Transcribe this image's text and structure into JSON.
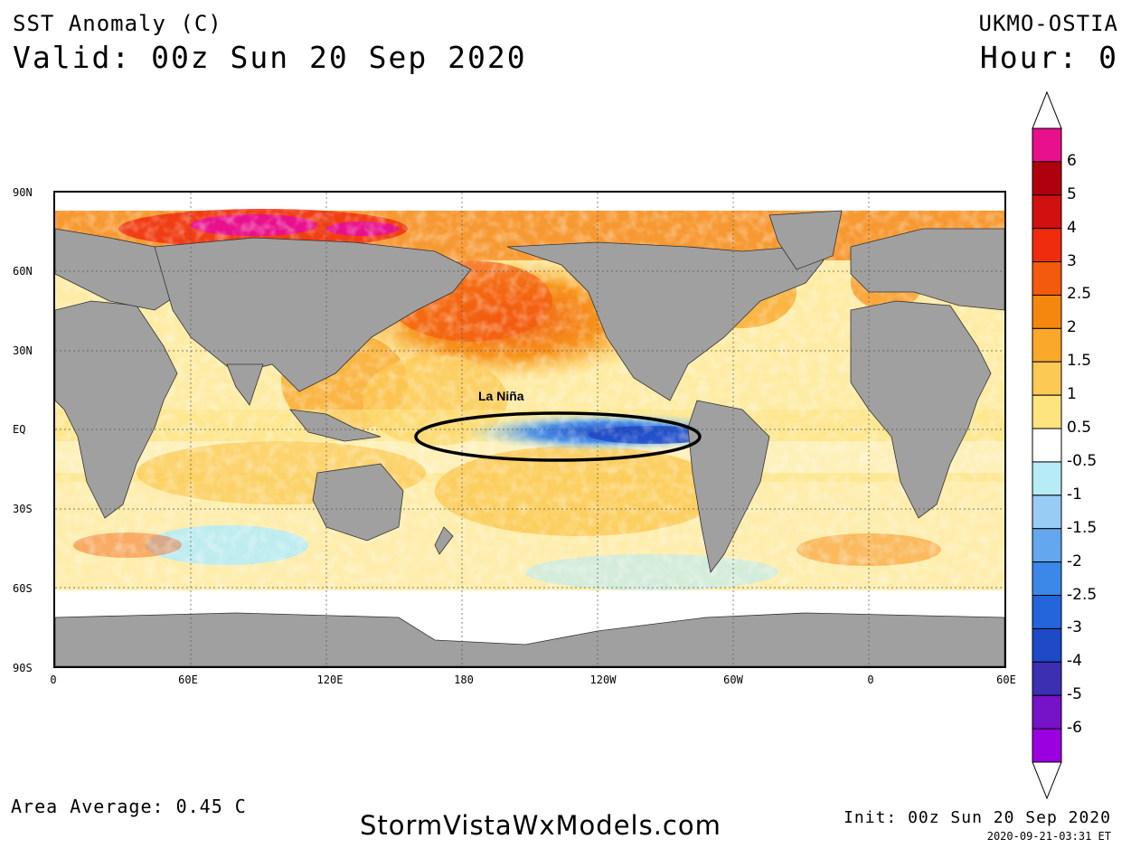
{
  "header": {
    "title": "SST Anomaly (C)",
    "valid": "Valid: 00z Sun 20 Sep 2020",
    "model": "UKMO-OSTIA",
    "hour": "Hour: 0"
  },
  "footer": {
    "area_average": "Area Average: 0.45 C",
    "site": "StormVistaWxModels.com",
    "init": "Init: 00z Sun 20 Sep 2020",
    "timestamp": "2020-09-21-03:31 ET"
  },
  "map": {
    "lat_labels": [
      "90N",
      "60N",
      "30N",
      "EQ",
      "30S",
      "60S",
      "90S"
    ],
    "lon_labels": [
      "0",
      "60E",
      "120E",
      "180",
      "120W",
      "60W",
      "0",
      "60E"
    ],
    "annotation": "La Niña",
    "land_color": "#a0a0a0"
  },
  "colorbar": {
    "labels": [
      "6",
      "5",
      "4",
      "3",
      "2.5",
      "2",
      "1.5",
      "1",
      "0.5",
      "-0.5",
      "-1",
      "-1.5",
      "-2",
      "-2.5",
      "-3",
      "-4",
      "-5",
      "-6"
    ],
    "colors": [
      "#e8108c",
      "#b0000e",
      "#d21010",
      "#ef2d0e",
      "#f45a0e",
      "#f6870e",
      "#f9a82a",
      "#fbc954",
      "#fde47f",
      "#ffffff",
      "#b7ebf6",
      "#99ccf5",
      "#63a8ee",
      "#3b88e8",
      "#2565dc",
      "#1e49c7",
      "#3c2fb2",
      "#7612c8",
      "#9a00e0"
    ]
  }
}
